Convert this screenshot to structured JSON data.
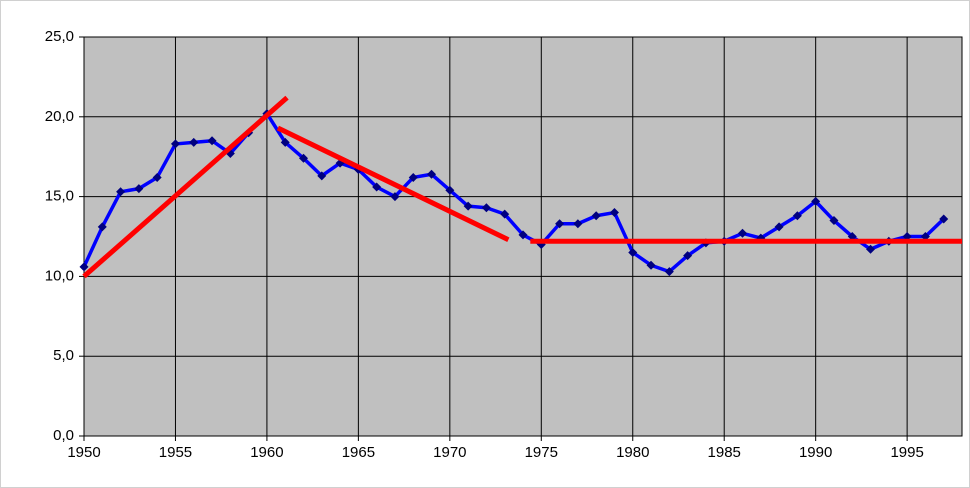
{
  "chart_data": {
    "type": "line",
    "x": [
      1950,
      1951,
      1952,
      1953,
      1954,
      1955,
      1956,
      1957,
      1958,
      1959,
      1960,
      1961,
      1962,
      1963,
      1964,
      1965,
      1966,
      1967,
      1968,
      1969,
      1970,
      1971,
      1972,
      1973,
      1974,
      1975,
      1976,
      1977,
      1978,
      1979,
      1980,
      1981,
      1982,
      1983,
      1984,
      1985,
      1986,
      1987,
      1988,
      1989,
      1990,
      1991,
      1992,
      1993,
      1994,
      1995,
      1996,
      1997
    ],
    "series": [
      {
        "color": "#0000ff",
        "marker_color": "#000080",
        "values": [
          10.6,
          13.1,
          15.3,
          15.5,
          16.2,
          18.3,
          18.4,
          18.5,
          17.7,
          19.0,
          20.2,
          18.4,
          17.4,
          16.3,
          17.1,
          16.7,
          15.6,
          15.0,
          16.2,
          16.4,
          15.4,
          14.4,
          14.3,
          13.9,
          12.6,
          12.0,
          13.3,
          13.3,
          13.8,
          14.0,
          11.5,
          10.7,
          10.3,
          11.3,
          12.1,
          12.2,
          12.7,
          12.4,
          13.1,
          13.8,
          14.7,
          13.5,
          12.5,
          11.7,
          12.2,
          12.5,
          12.5,
          13.6
        ]
      }
    ],
    "trend_lines": [
      {
        "color": "#ff0000",
        "x": [
          1950,
          1961.1
        ],
        "values": [
          10.0,
          21.2
        ]
      },
      {
        "color": "#ff0000",
        "x": [
          1960.6,
          1973.2
        ],
        "values": [
          19.3,
          12.3
        ]
      },
      {
        "color": "#ff0000",
        "x": [
          1974.4,
          1998
        ],
        "values": [
          12.2,
          12.2
        ]
      }
    ],
    "xlim": [
      1950,
      1998
    ],
    "xticks": [
      1950,
      1955,
      1960,
      1965,
      1970,
      1975,
      1980,
      1985,
      1990,
      1995
    ],
    "ylim": [
      0,
      25
    ],
    "yticks": [
      {
        "value": 0,
        "label": "0,0"
      },
      {
        "value": 5,
        "label": "5,0"
      },
      {
        "value": 10,
        "label": "10,0"
      },
      {
        "value": 15,
        "label": "15,0"
      },
      {
        "value": 20,
        "label": "20,0"
      },
      {
        "value": 25,
        "label": "25,0"
      }
    ],
    "grid": true,
    "plot_background": "#c0c0c0"
  }
}
